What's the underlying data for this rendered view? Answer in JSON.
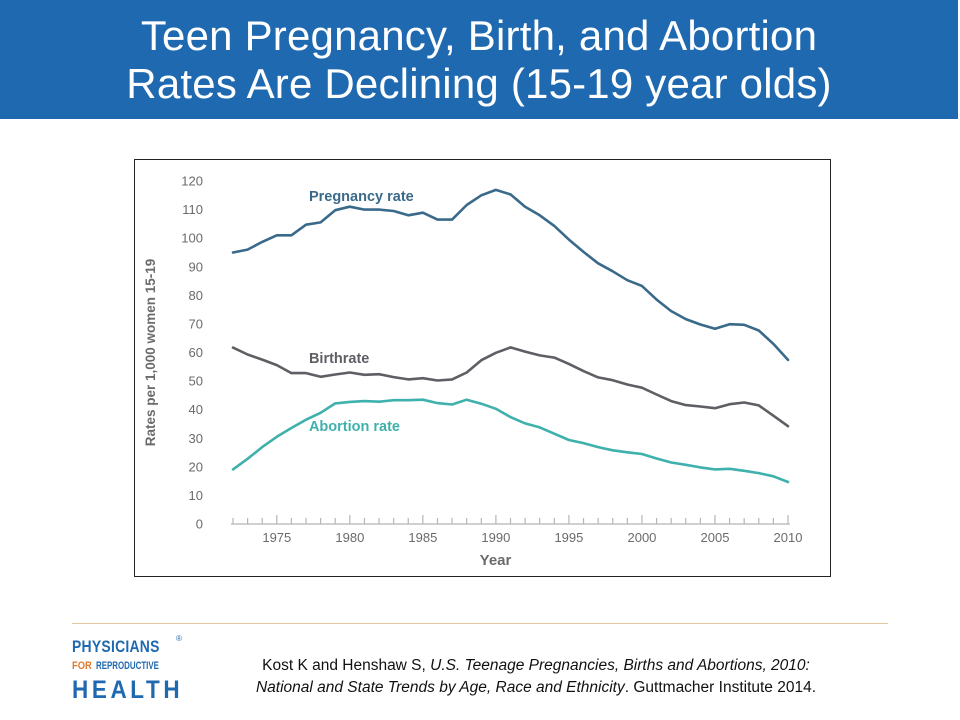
{
  "slide": {
    "title_line1": "Teen Pregnancy, Birth, and Abortion",
    "title_line2": "Rates Are Declining (15-19 year olds)",
    "citation_authors": "Kost K and Henshaw S, ",
    "citation_title_1": "U.S. Teenage Pregnancies, Births and Abortions, 2010:",
    "citation_title_2": "National and State Trends by Age, Race and Ethnicity",
    "citation_publisher": ".  Guttmacher Institute 2014."
  },
  "logo": {
    "line1": "PHYSICIANS",
    "line2a": "FOR",
    "line2b": "REPRODUCTIVE",
    "line3": "HEALTH",
    "registered": "®"
  },
  "colors": {
    "title_bar": "#1f69b0",
    "pregnancy": "#3a6a8a",
    "birth": "#5e5f64",
    "abortion": "#3fb1ad",
    "axis_text": "#6b6b6b"
  },
  "chart_data": {
    "type": "line",
    "title": "",
    "xlabel": "Year",
    "ylabel": "Rates per 1,000 women 15-19",
    "xlim": [
      1972,
      2010
    ],
    "ylim": [
      0,
      120
    ],
    "x_ticks": [
      1975,
      1980,
      1985,
      1990,
      1995,
      2000,
      2005,
      2010
    ],
    "y_ticks": [
      0,
      10,
      20,
      30,
      40,
      50,
      60,
      70,
      80,
      90,
      100,
      110,
      120
    ],
    "grid": false,
    "x": [
      1972,
      1973,
      1974,
      1975,
      1976,
      1977,
      1978,
      1979,
      1980,
      1981,
      1982,
      1983,
      1984,
      1985,
      1986,
      1987,
      1988,
      1989,
      1990,
      1991,
      1992,
      1993,
      1994,
      1995,
      1996,
      1997,
      1998,
      1999,
      2000,
      2001,
      2002,
      2003,
      2004,
      2005,
      2006,
      2007,
      2008,
      2009,
      2010
    ],
    "series": [
      {
        "name": "Pregnancy rate",
        "values": [
          95,
          96,
          98.7,
          101,
          101,
          104.7,
          105.5,
          109.8,
          111,
          110,
          110,
          109.5,
          108,
          108.9,
          106.5,
          106.5,
          111.6,
          115,
          116.9,
          115.3,
          111,
          108,
          104.3,
          99.5,
          95.2,
          91.2,
          88.4,
          85.3,
          83.3,
          78.5,
          74.5,
          71.7,
          69.8,
          68.3,
          69.9,
          69.7,
          67.7,
          63,
          57.4
        ]
      },
      {
        "name": "Birthrate",
        "values": [
          61.7,
          59.3,
          57.5,
          55.6,
          52.8,
          52.8,
          51.5,
          52.3,
          53,
          52.2,
          52.4,
          51.4,
          50.6,
          51,
          50.2,
          50.6,
          53,
          57.3,
          59.9,
          61.8,
          60.3,
          59,
          58.2,
          56,
          53.5,
          51.3,
          50.3,
          48.8,
          47.7,
          45.3,
          43,
          41.6,
          41.1,
          40.5,
          41.9,
          42.5,
          41.5,
          37.9,
          34.2
        ]
      },
      {
        "name": "Abortion rate",
        "values": [
          19.1,
          22.8,
          26.9,
          30.5,
          33.6,
          36.5,
          38.9,
          42.2,
          42.7,
          43,
          42.8,
          43.3,
          43.3,
          43.5,
          42.3,
          41.8,
          43.5,
          42.1,
          40.3,
          37.4,
          35.2,
          33.8,
          31.6,
          29.4,
          28.3,
          26.9,
          25.8,
          25.1,
          24.5,
          22.9,
          21.5,
          20.7,
          19.8,
          19.1,
          19.3,
          18.6,
          17.8,
          16.7,
          14.7
        ]
      }
    ],
    "annotations": [
      "Pregnancy rate",
      "Birthrate",
      "Abortion rate"
    ]
  }
}
